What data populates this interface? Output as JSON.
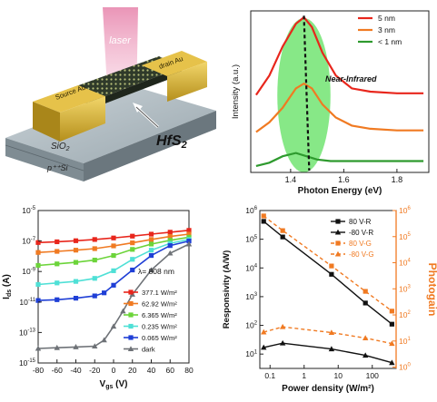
{
  "device": {
    "laser_label": "laser",
    "source_label": "Source Au",
    "drain_label": "drain Au",
    "material_label": "HfS",
    "material_sub": "2",
    "oxide_label": "SiO",
    "oxide_sub": "2",
    "substrate_label": "p⁺⁺Si",
    "colors": {
      "laser": "#e98fb3",
      "gold": "#d8b23a",
      "flake": "#3e4a35",
      "substrate": "#9aa7ae"
    }
  },
  "chart_data": [
    {
      "id": "pl",
      "type": "line",
      "title": "",
      "xlabel": "Photon Energy (eV)",
      "ylabel": "Intensity (a.u.)",
      "xlim": [
        1.25,
        1.92
      ],
      "ylim": [
        0,
        1
      ],
      "xticks": [
        "1.4",
        "1.6",
        "1.8"
      ],
      "annotation": "Near-Infrared",
      "highlight_color": "#5fe05f",
      "series": [
        {
          "name": "5 nm",
          "color": "#e8261c",
          "points": [
            [
              1.27,
              0.48
            ],
            [
              1.32,
              0.6
            ],
            [
              1.37,
              0.78
            ],
            [
              1.42,
              0.92
            ],
            [
              1.45,
              0.96
            ],
            [
              1.48,
              0.9
            ],
            [
              1.52,
              0.74
            ],
            [
              1.57,
              0.6
            ],
            [
              1.63,
              0.52
            ],
            [
              1.7,
              0.5
            ],
            [
              1.8,
              0.49
            ],
            [
              1.9,
              0.49
            ]
          ]
        },
        {
          "name": "3 nm",
          "color": "#f07a22",
          "points": [
            [
              1.27,
              0.25
            ],
            [
              1.32,
              0.31
            ],
            [
              1.37,
              0.4
            ],
            [
              1.42,
              0.52
            ],
            [
              1.45,
              0.55
            ],
            [
              1.48,
              0.52
            ],
            [
              1.52,
              0.42
            ],
            [
              1.57,
              0.34
            ],
            [
              1.63,
              0.29
            ],
            [
              1.7,
              0.27
            ],
            [
              1.8,
              0.26
            ],
            [
              1.9,
              0.26
            ]
          ]
        },
        {
          "name": "< 1 nm",
          "color": "#2e9a2e",
          "points": [
            [
              1.27,
              0.04
            ],
            [
              1.32,
              0.06
            ],
            [
              1.37,
              0.1
            ],
            [
              1.42,
              0.12
            ],
            [
              1.46,
              0.1
            ],
            [
              1.5,
              0.08
            ],
            [
              1.55,
              0.07
            ],
            [
              1.62,
              0.07
            ],
            [
              1.7,
              0.07
            ],
            [
              1.8,
              0.07
            ],
            [
              1.9,
              0.07
            ]
          ]
        }
      ]
    },
    {
      "id": "iv",
      "type": "line",
      "title": "",
      "xlabel_main": "V",
      "xlabel_sub": "gs",
      "xlabel_unit": " (V)",
      "ylabel_main": "I",
      "ylabel_sub": "ds",
      "ylabel_unit": " (A)",
      "xlim": [
        -80,
        80
      ],
      "ylim_exp": [
        -15,
        -5
      ],
      "log_y": true,
      "xticks": [
        "-80",
        "-60",
        "-40",
        "-20",
        "0",
        "20",
        "40",
        "60",
        "80"
      ],
      "yticks": [
        {
          "base": "10",
          "exp": "-5"
        },
        {
          "base": "10",
          "exp": "-7"
        },
        {
          "base": "10",
          "exp": "-9"
        },
        {
          "base": "10",
          "exp": "-11"
        },
        {
          "base": "10",
          "exp": "-13"
        },
        {
          "base": "10",
          "exp": "-15"
        }
      ],
      "wavelength_label": "λ= 808 nm",
      "series": [
        {
          "name": "377.1 W/m²",
          "color": "#e8261c",
          "marker": "square",
          "x": [
            -80,
            -60,
            -40,
            -20,
            0,
            20,
            40,
            60,
            80
          ],
          "log10y": [
            -7.1,
            -7.05,
            -6.98,
            -6.9,
            -6.8,
            -6.68,
            -6.55,
            -6.42,
            -6.3
          ]
        },
        {
          "name": "62.92 W/m²",
          "color": "#f07a22",
          "marker": "square",
          "x": [
            -80,
            -60,
            -40,
            -20,
            0,
            20,
            40,
            60,
            80
          ],
          "log10y": [
            -7.75,
            -7.68,
            -7.6,
            -7.5,
            -7.32,
            -7.12,
            -6.9,
            -6.7,
            -6.55
          ]
        },
        {
          "name": "6.365 W/m²",
          "color": "#6cd43a",
          "marker": "square",
          "x": [
            -80,
            -60,
            -40,
            -20,
            0,
            20,
            40,
            60,
            80
          ],
          "log10y": [
            -8.6,
            -8.5,
            -8.4,
            -8.25,
            -7.95,
            -7.55,
            -7.2,
            -6.95,
            -6.75
          ]
        },
        {
          "name": "0.235 W/m²",
          "color": "#4fe0d6",
          "marker": "square",
          "x": [
            -80,
            -60,
            -40,
            -20,
            0,
            20,
            40,
            60,
            80
          ],
          "log10y": [
            -9.85,
            -9.75,
            -9.65,
            -9.45,
            -8.95,
            -8.2,
            -7.6,
            -7.15,
            -6.9
          ]
        },
        {
          "name": "0.065 W/m²",
          "color": "#1f3fd6",
          "marker": "square",
          "x": [
            -80,
            -60,
            -40,
            -20,
            -10,
            0,
            20,
            40,
            60,
            80
          ],
          "log10y": [
            -10.9,
            -10.85,
            -10.75,
            -10.6,
            -10.4,
            -9.9,
            -8.9,
            -7.95,
            -7.3,
            -7.0
          ]
        },
        {
          "name": "dark",
          "color": "#6e7277",
          "marker": "triangle",
          "x": [
            -80,
            -60,
            -40,
            -20,
            -10,
            0,
            10,
            20,
            40,
            60,
            80
          ],
          "log10y": [
            -14.05,
            -14.0,
            -13.95,
            -13.9,
            -13.5,
            -12.6,
            -11.6,
            -10.5,
            -8.9,
            -7.8,
            -7.2
          ]
        }
      ]
    },
    {
      "id": "resp",
      "type": "line",
      "title": "",
      "xlabel": "Power density (W/m²)",
      "ylabel_left": "Responsivity (A/W)",
      "ylabel_right": "Photogain",
      "right_axis_color": "#f07a22",
      "log_x": true,
      "log_y": true,
      "xlim_exp": [
        -1.3,
        2.7
      ],
      "ylim_left_exp": [
        0.5,
        6
      ],
      "ylim_right_exp": [
        -0.05,
        6
      ],
      "xticks": [
        {
          "base": "0.1",
          "exp": ""
        },
        {
          "base": "1",
          "exp": ""
        },
        {
          "base": "10",
          "exp": ""
        },
        {
          "base": "100",
          "exp": ""
        }
      ],
      "yticks_left": [
        {
          "base": "10",
          "exp": "6"
        },
        {
          "base": "10",
          "exp": "5"
        },
        {
          "base": "10",
          "exp": "4"
        },
        {
          "base": "10",
          "exp": "3"
        },
        {
          "base": "10",
          "exp": "2"
        },
        {
          "base": "10",
          "exp": "1"
        }
      ],
      "yticks_right": [
        {
          "base": "10",
          "exp": "6"
        },
        {
          "base": "10",
          "exp": "5"
        },
        {
          "base": "10",
          "exp": "4"
        },
        {
          "base": "10",
          "exp": "3"
        },
        {
          "base": "10",
          "exp": "2"
        },
        {
          "base": "10",
          "exp": "1"
        },
        {
          "base": "10",
          "exp": "0"
        }
      ],
      "series": [
        {
          "name": "80 V-R",
          "color": "#111111",
          "axis": "left",
          "dash": false,
          "marker": "square",
          "x": [
            0.065,
            0.235,
            6.365,
            62.92,
            377.1
          ],
          "y": [
            420000,
            120000,
            6000,
            600,
            110
          ]
        },
        {
          "name": "-80 V-R",
          "color": "#111111",
          "axis": "left",
          "dash": false,
          "marker": "triangle",
          "x": [
            0.065,
            0.235,
            6.365,
            62.92,
            377.1
          ],
          "y": [
            17,
            24,
            15,
            9,
            5
          ]
        },
        {
          "name": "80 V-G",
          "color": "#f07a22",
          "axis": "right",
          "dash": true,
          "marker": "square",
          "x": [
            0.065,
            0.235,
            6.365,
            62.92,
            377.1
          ],
          "y": [
            620000,
            170000,
            7500,
            800,
            140
          ]
        },
        {
          "name": "-80 V-G",
          "color": "#f07a22",
          "axis": "right",
          "dash": true,
          "marker": "triangle",
          "x": [
            0.065,
            0.235,
            6.365,
            62.92,
            377.1
          ],
          "y": [
            22,
            35,
            21,
            13,
            8
          ]
        }
      ]
    }
  ]
}
